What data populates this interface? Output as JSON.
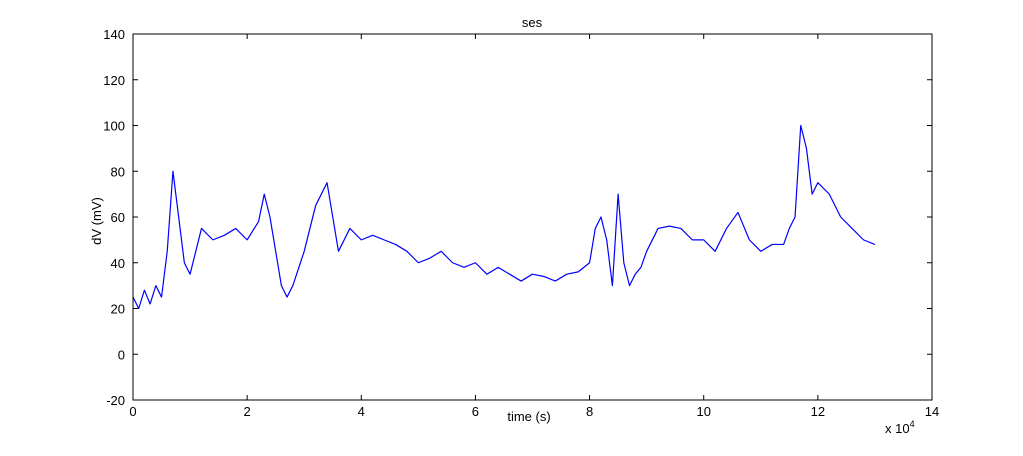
{
  "chart_data": {
    "type": "line",
    "title": "ses",
    "xlabel": "time (s)",
    "ylabel": "dV (mV)",
    "x_multiplier_label": "x 10",
    "x_multiplier_exponent": "4",
    "xlim": [
      0,
      14
    ],
    "ylim": [
      -20,
      140
    ],
    "x_unit_scale": 10000,
    "xticks": [
      "0",
      "2",
      "4",
      "6",
      "8",
      "10",
      "12",
      "14"
    ],
    "yticks": [
      "-20",
      "0",
      "20",
      "40",
      "60",
      "80",
      "100",
      "120",
      "140"
    ],
    "grid": false,
    "series": [
      {
        "color": "#0000ff",
        "x": [
          0,
          0.1,
          0.2,
          0.3,
          0.4,
          0.5,
          0.6,
          0.7,
          0.8,
          0.9,
          1.0,
          1.2,
          1.4,
          1.6,
          1.8,
          2.0,
          2.2,
          2.3,
          2.4,
          2.6,
          2.7,
          2.8,
          3.0,
          3.2,
          3.4,
          3.6,
          3.8,
          4.0,
          4.2,
          4.4,
          4.6,
          4.8,
          5.0,
          5.2,
          5.4,
          5.6,
          5.8,
          6.0,
          6.2,
          6.4,
          6.6,
          6.8,
          7.0,
          7.2,
          7.4,
          7.6,
          7.8,
          8.0,
          8.1,
          8.2,
          8.3,
          8.4,
          8.5,
          8.6,
          8.7,
          8.8,
          8.9,
          9.0,
          9.2,
          9.4,
          9.6,
          9.8,
          10.0,
          10.2,
          10.4,
          10.6,
          10.8,
          11.0,
          11.2,
          11.4,
          11.5,
          11.6,
          11.7,
          11.8,
          11.9,
          12.0,
          12.2,
          12.4,
          12.6,
          12.8,
          13.0
        ],
        "y": [
          25,
          20,
          28,
          22,
          30,
          25,
          45,
          80,
          60,
          40,
          35,
          55,
          50,
          52,
          55,
          50,
          58,
          70,
          60,
          30,
          25,
          30,
          45,
          65,
          75,
          45,
          55,
          50,
          52,
          50,
          48,
          45,
          40,
          42,
          45,
          40,
          38,
          40,
          35,
          38,
          35,
          32,
          35,
          34,
          32,
          35,
          36,
          40,
          55,
          60,
          50,
          30,
          70,
          40,
          30,
          35,
          38,
          45,
          55,
          56,
          55,
          50,
          50,
          45,
          55,
          62,
          50,
          45,
          48,
          48,
          55,
          60,
          100,
          90,
          70,
          75,
          70,
          60,
          55,
          50,
          48
        ]
      }
    ]
  }
}
